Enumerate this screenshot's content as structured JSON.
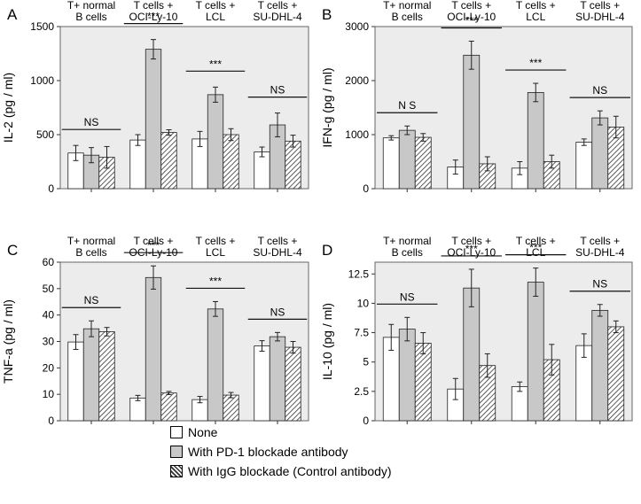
{
  "figure": {
    "legend": [
      {
        "key": "none",
        "label": "None",
        "fill": "#ffffff"
      },
      {
        "key": "pd1",
        "label": "With PD-1 blockade antibody",
        "fill": "#c8c8c8"
      },
      {
        "key": "igg",
        "label": "With IgG blockade (Control antibody)",
        "fill": "hatch"
      }
    ]
  },
  "chart_data": [
    {
      "panel": "A",
      "type": "bar",
      "ylabel": "IL-2 (pg / ml)",
      "ylim": [
        0,
        1500
      ],
      "yticks": [
        0,
        500,
        1000,
        1500
      ],
      "categories": [
        "T+ normal\nB cells",
        "T cells +\nOCI-Ly-10",
        "T cells +\nLCL",
        "T cells +\nSU-DHL-4"
      ],
      "series": [
        {
          "name": "None",
          "values": [
            330,
            450,
            460,
            340
          ],
          "errors": [
            70,
            50,
            70,
            45
          ]
        },
        {
          "name": "With PD-1 blockade antibody",
          "values": [
            310,
            1290,
            870,
            590
          ],
          "errors": [
            70,
            90,
            70,
            110
          ]
        },
        {
          "name": "With IgG blockade (Control antibody)",
          "values": [
            290,
            520,
            500,
            440
          ],
          "errors": [
            100,
            25,
            55,
            55
          ]
        }
      ],
      "significance": [
        "NS",
        "***",
        "***",
        "NS"
      ]
    },
    {
      "panel": "B",
      "type": "bar",
      "ylabel": "IFN-g (pg / ml)",
      "ylim": [
        0,
        3000
      ],
      "yticks": [
        0,
        1000,
        2000,
        3000
      ],
      "categories": [
        "T+ normal\nB cells",
        "T cells +\nOCI-Ly-10",
        "T cells +\nLCL",
        "T cells +\nSU-DHL-4"
      ],
      "series": [
        {
          "name": "None",
          "values": [
            940,
            400,
            380,
            860
          ],
          "errors": [
            40,
            130,
            120,
            60
          ]
        },
        {
          "name": "With PD-1 blockade antibody",
          "values": [
            1080,
            2470,
            1780,
            1310
          ],
          "errors": [
            80,
            260,
            170,
            130
          ]
        },
        {
          "name": "With IgG blockade (Control antibody)",
          "values": [
            950,
            460,
            500,
            1140
          ],
          "errors": [
            70,
            130,
            120,
            200
          ]
        }
      ],
      "significance": [
        "N S",
        "***",
        "***",
        "NS"
      ]
    },
    {
      "panel": "C",
      "type": "bar",
      "ylabel": "TNF-a (pg / ml)",
      "ylim": [
        0,
        60
      ],
      "yticks": [
        0,
        10,
        20,
        30,
        40,
        50,
        60
      ],
      "categories": [
        "T+ normal\nB cells",
        "T cells +\nOCI-Ly-10",
        "T cells +\nLCL",
        "T cells +\nSU-DHL-4"
      ],
      "series": [
        {
          "name": "None",
          "values": [
            29.8,
            8.6,
            8.0,
            28.3
          ],
          "errors": [
            2.8,
            1.0,
            1.2,
            2.0
          ]
        },
        {
          "name": "With PD-1 blockade antibody",
          "values": [
            34.8,
            54.2,
            42.3,
            31.8
          ],
          "errors": [
            3.0,
            4.4,
            2.8,
            1.6
          ]
        },
        {
          "name": "With IgG blockade (Control antibody)",
          "values": [
            33.7,
            10.5,
            9.7,
            27.8
          ],
          "errors": [
            1.6,
            0.6,
            1.0,
            2.2
          ]
        }
      ],
      "significance": [
        "NS",
        "***",
        "***",
        "NS"
      ]
    },
    {
      "panel": "D",
      "type": "bar",
      "ylabel": "IL-10 (pg / ml)",
      "ylim": [
        0,
        13.5
      ],
      "yticks": [
        0,
        2.5,
        5,
        7.5,
        10,
        12.5
      ],
      "categories": [
        "T+ normal\nB cells",
        "T cells +\nOCI-Ly-10",
        "T cells +\nLCL",
        "T cells +\nSU-DHL-4"
      ],
      "series": [
        {
          "name": "None",
          "values": [
            7.1,
            2.7,
            2.9,
            6.4
          ],
          "errors": [
            1.1,
            0.9,
            0.4,
            1.0
          ]
        },
        {
          "name": "With PD-1 blockade antibody",
          "values": [
            7.8,
            11.3,
            11.8,
            9.4
          ],
          "errors": [
            1.0,
            1.6,
            1.2,
            0.5
          ]
        },
        {
          "name": "With IgG blockade (Control antibody)",
          "values": [
            6.6,
            4.7,
            5.2,
            8.0
          ],
          "errors": [
            0.9,
            1.0,
            1.3,
            0.5
          ]
        }
      ],
      "significance": [
        "NS",
        "***",
        "***",
        "NS"
      ]
    }
  ]
}
